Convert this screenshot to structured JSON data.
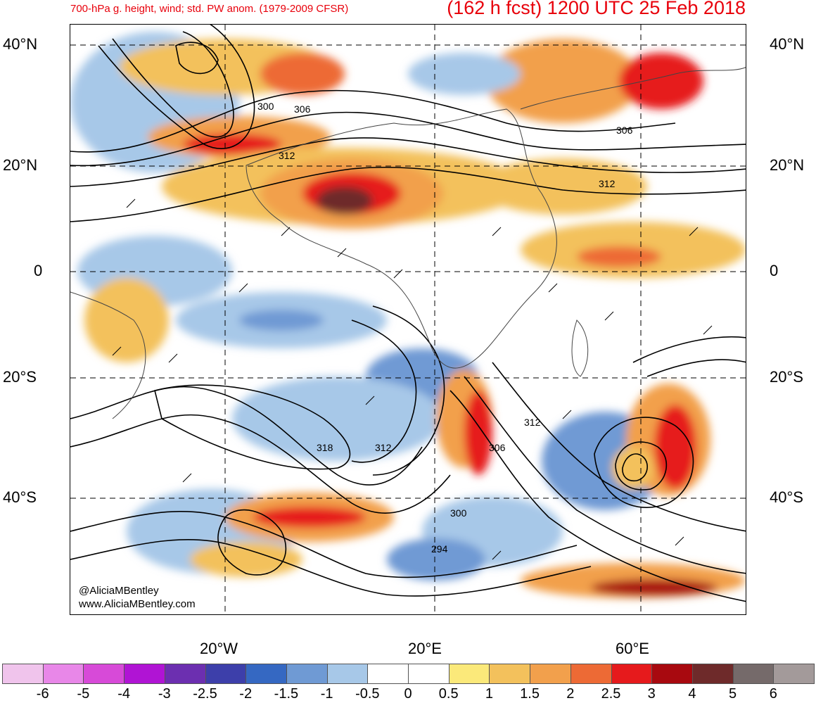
{
  "header": {
    "subtitle": "700-hPa g. height, wind; std. PW anom. (1979-2009 CFSR)",
    "forecast": "(162 h fcst) 1200 UTC 25 Feb 2018"
  },
  "map": {
    "lat_labels": [
      "40°N",
      "20°N",
      "0",
      "20°S",
      "40°S"
    ],
    "lon_labels": [
      "20°W",
      "20°E",
      "60°E"
    ],
    "contour_labels": [
      "300",
      "306",
      "312",
      "306",
      "312",
      "318",
      "312",
      "312",
      "306",
      "300",
      "294"
    ],
    "credit_handle": "@AliciaMBentley",
    "credit_site": "www.AliciaMBentley.com"
  },
  "legend": {
    "colors": [
      "#f0c4ec",
      "#e887e8",
      "#d74ad8",
      "#b014d4",
      "#6c2fb0",
      "#3d3faa",
      "#3568c2",
      "#6f9ad4",
      "#a7c8e8",
      "#ffffff",
      "#ffffff",
      "#fbe97a",
      "#f3c15c",
      "#f2a04c",
      "#ed6a35",
      "#e61a1c",
      "#a8090f",
      "#6e2a2a",
      "#756a6a",
      "#a39a9a"
    ],
    "labels": [
      "-6",
      "-5",
      "-4",
      "-3",
      "-2.5",
      "-2",
      "-1.5",
      "-1",
      "-0.5",
      "0",
      "0.5",
      "1",
      "1.5",
      "2",
      "2.5",
      "3",
      "4",
      "5",
      "6"
    ]
  }
}
